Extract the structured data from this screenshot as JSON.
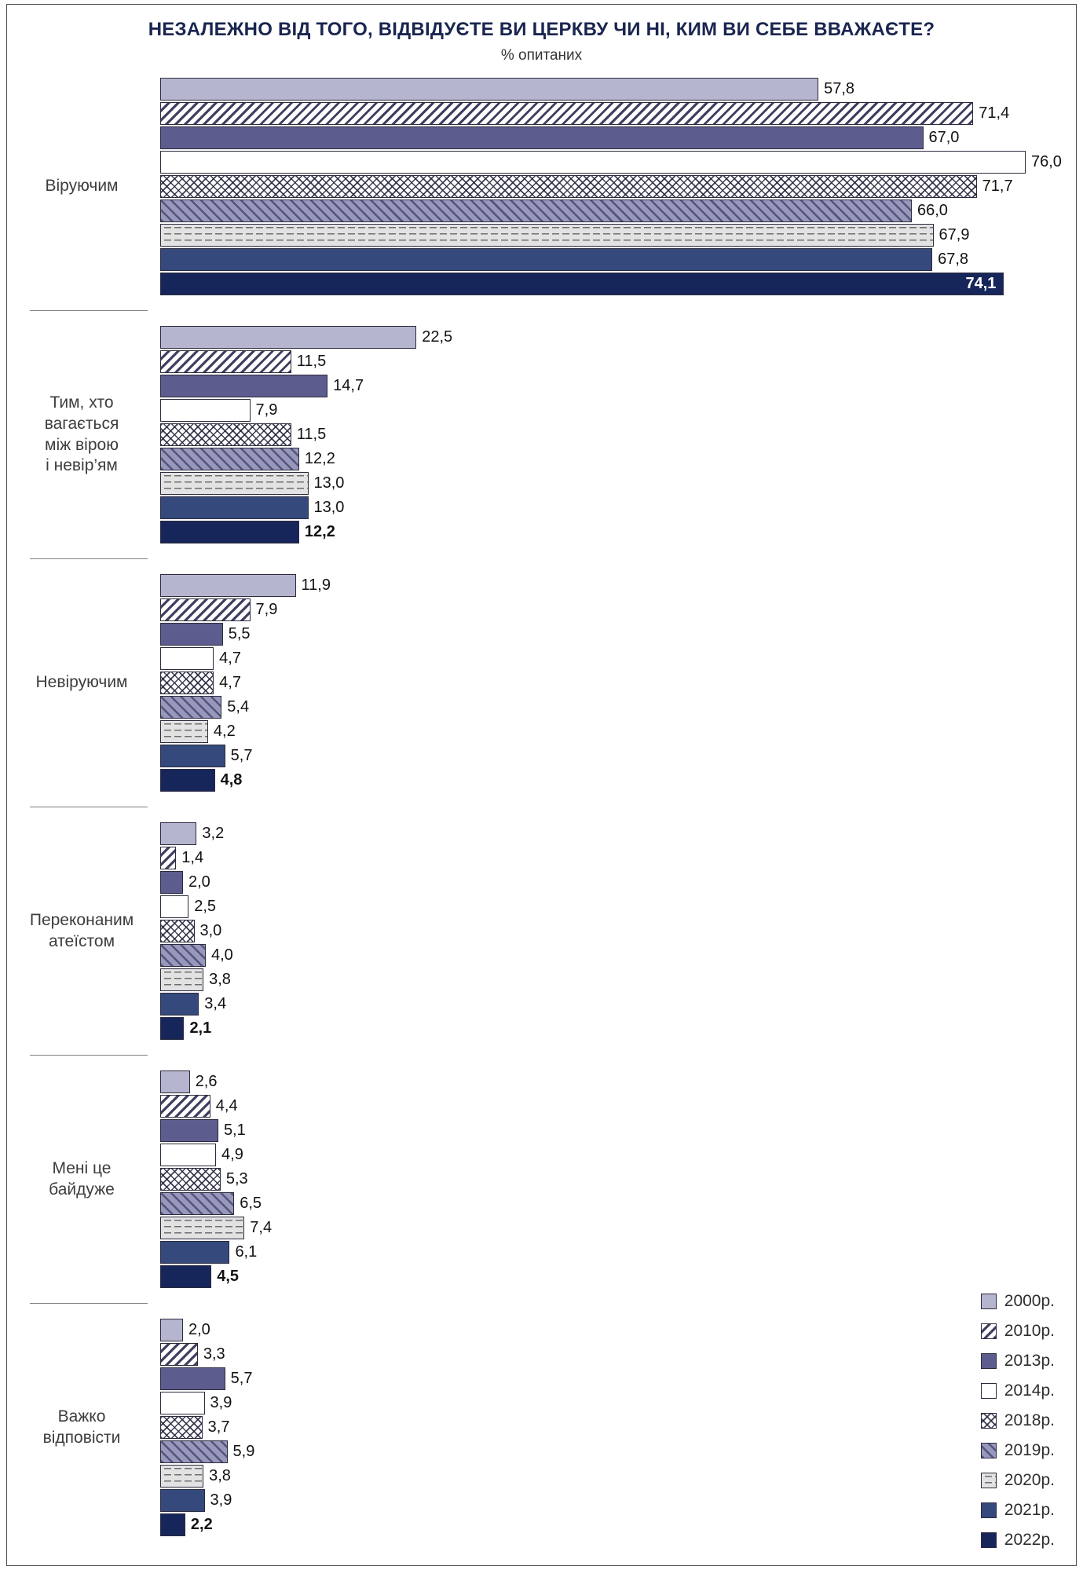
{
  "title": "НЕЗАЛЕЖНО ВІД ТОГО, ВІДВІДУЄТЕ ВИ ЦЕРКВУ ЧИ НІ, КИМ ВИ СЕБЕ ВВАЖАЄТЕ?",
  "subtitle": "% опитаних",
  "chart_data": {
    "type": "bar",
    "orientation": "horizontal",
    "unit": "percent",
    "xlim": [
      0,
      80
    ],
    "grid": false,
    "legend_position": "bottom-right",
    "value_label_format": "comma-decimal",
    "series_labels": [
      "2000р.",
      "2010р.",
      "2013р.",
      "2014р.",
      "2018р.",
      "2019р.",
      "2020р.",
      "2021р.",
      "2022р."
    ],
    "series_styles": [
      {
        "year": "2000",
        "fill": "#b5b5cf",
        "pattern": "solid"
      },
      {
        "year": "2010",
        "fill": "#ffffff",
        "pattern": "diagonal-hatch"
      },
      {
        "year": "2013",
        "fill": "#5c5c8e",
        "pattern": "solid"
      },
      {
        "year": "2014",
        "fill": "#ffffff",
        "pattern": "plain-outline"
      },
      {
        "year": "2018",
        "fill": "#ffffff",
        "pattern": "crosshatch"
      },
      {
        "year": "2019",
        "fill": "#9898bc",
        "pattern": "diagonal-hatch"
      },
      {
        "year": "2020",
        "fill": "#e2e2e2",
        "pattern": "dashed-horizontal"
      },
      {
        "year": "2021",
        "fill": "#35497d",
        "pattern": "solid"
      },
      {
        "year": "2022",
        "fill": "#17265a",
        "pattern": "solid"
      }
    ],
    "groups": [
      {
        "category": "Віруючим",
        "lines": [
          "Віруючим"
        ],
        "values": [
          57.8,
          71.4,
          67.0,
          76.0,
          71.7,
          66.0,
          67.9,
          67.8,
          74.1
        ]
      },
      {
        "category": "Тим, хто вагається між вірою і невір’ям",
        "lines": [
          "Тим, хто",
          "вагається",
          "між вірою",
          "і невір’ям"
        ],
        "values": [
          22.5,
          11.5,
          14.7,
          7.9,
          11.5,
          12.2,
          13.0,
          13.0,
          12.2
        ]
      },
      {
        "category": "Невіруючим",
        "lines": [
          "Невіруючим"
        ],
        "values": [
          11.9,
          7.9,
          5.5,
          4.7,
          4.7,
          5.4,
          4.2,
          5.7,
          4.8
        ]
      },
      {
        "category": "Переконаним атеїстом",
        "lines": [
          "Переконаним",
          "атеїстом"
        ],
        "values": [
          3.2,
          1.4,
          2.0,
          2.5,
          3.0,
          4.0,
          3.8,
          3.4,
          2.1
        ]
      },
      {
        "category": "Мені це байдуже",
        "lines": [
          "Мені це",
          "байдуже"
        ],
        "values": [
          2.6,
          4.4,
          5.1,
          4.9,
          5.3,
          6.5,
          7.4,
          6.1,
          4.5
        ]
      },
      {
        "category": "Важко відповісти",
        "lines": [
          "Важко",
          "відповісти"
        ],
        "values": [
          2.0,
          3.3,
          5.7,
          3.9,
          3.7,
          5.9,
          3.8,
          3.9,
          2.2
        ]
      }
    ],
    "inside_labels": [
      {
        "group": 0,
        "series": 8
      }
    ],
    "colors": {
      "title": "#1a2550",
      "bar_border": "#2b2b3d",
      "value_label": "#121212",
      "inside_label": "#ffffff"
    }
  }
}
